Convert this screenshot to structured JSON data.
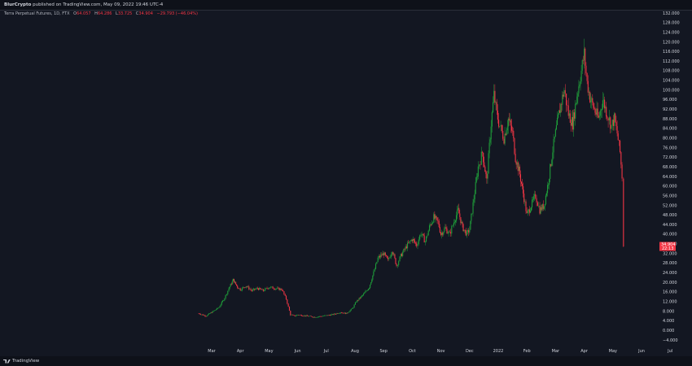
{
  "header": {
    "publisher": "BlurCrypto",
    "published_text": "published on TradingView.com, May 09, 2022 19:46 UTC-4"
  },
  "legend": {
    "symbol": "Terra Perpetual Futures, 1D, FTX",
    "open_label": "O",
    "open_value": "64.057",
    "high_label": "H",
    "high_value": "64.286",
    "low_label": "L",
    "low_value": "33.725",
    "close_label": "C",
    "close_value": "34.904",
    "change_text": "−29.793 (−46.04%)"
  },
  "price_badges": {
    "last_price": "34.904",
    "countdown": "22:13",
    "color": "#f23645"
  },
  "footer": {
    "brand": "TradingView"
  },
  "colors": {
    "up": "#22ab94",
    "up_bright": "#1f9d3a",
    "down": "#f23645",
    "background": "#131722",
    "axis_text": "#d1d4dc"
  },
  "chart_data": {
    "type": "candlestick",
    "y_axis_labels": [
      "−4.000",
      "0.000",
      "4.000",
      "8.000",
      "12.000",
      "16.000",
      "20.000",
      "24.000",
      "28.000",
      "32.000",
      "36.000",
      "40.000",
      "44.000",
      "48.000",
      "52.000",
      "56.000",
      "60.000",
      "64.000",
      "68.000",
      "72.000",
      "76.000",
      "80.000",
      "84.000",
      "88.000",
      "92.000",
      "96.000",
      "100.000",
      "104.000",
      "108.000",
      "112.000",
      "116.000",
      "120.000",
      "124.000",
      "128.000",
      "132.000"
    ],
    "ylim": [
      -4,
      132
    ],
    "y_axis_position": "right",
    "x_axis_labels": [
      "Mar",
      "Apr",
      "May",
      "Jun",
      "Jul",
      "Aug",
      "Sep",
      "Oct",
      "Nov",
      "Dec",
      "2022",
      "Feb",
      "Mar",
      "Apr",
      "May",
      "Jun",
      "Jul"
    ],
    "x_axis_months_index": [
      0,
      1,
      2,
      3,
      4,
      5,
      6,
      7,
      8,
      9,
      10,
      11,
      12,
      13,
      14,
      15,
      16
    ],
    "grid": false,
    "legend_placement": "top-left",
    "price_path": [
      {
        "m": -0.45,
        "v": 7.0
      },
      {
        "m": -0.2,
        "v": 6.0
      },
      {
        "m": 0.0,
        "v": 7.5
      },
      {
        "m": 0.25,
        "v": 9.5
      },
      {
        "m": 0.45,
        "v": 13.5
      },
      {
        "m": 0.6,
        "v": 17.5
      },
      {
        "m": 0.75,
        "v": 21.0
      },
      {
        "m": 0.9,
        "v": 18.0
      },
      {
        "m": 1.0,
        "v": 17.0
      },
      {
        "m": 1.2,
        "v": 18.5
      },
      {
        "m": 1.4,
        "v": 16.5
      },
      {
        "m": 1.6,
        "v": 17.5
      },
      {
        "m": 1.8,
        "v": 16.5
      },
      {
        "m": 2.0,
        "v": 18.0
      },
      {
        "m": 2.2,
        "v": 17.5
      },
      {
        "m": 2.45,
        "v": 17.0
      },
      {
        "m": 2.6,
        "v": 13.0
      },
      {
        "m": 2.75,
        "v": 6.5
      },
      {
        "m": 2.9,
        "v": 6.0
      },
      {
        "m": 3.0,
        "v": 6.5
      },
      {
        "m": 3.3,
        "v": 6.0
      },
      {
        "m": 3.6,
        "v": 5.5
      },
      {
        "m": 3.9,
        "v": 6.0
      },
      {
        "m": 4.2,
        "v": 6.5
      },
      {
        "m": 4.5,
        "v": 7.5
      },
      {
        "m": 4.7,
        "v": 7.0
      },
      {
        "m": 4.9,
        "v": 9.0
      },
      {
        "m": 5.05,
        "v": 12.0
      },
      {
        "m": 5.3,
        "v": 15.0
      },
      {
        "m": 5.5,
        "v": 18.0
      },
      {
        "m": 5.65,
        "v": 24.0
      },
      {
        "m": 5.8,
        "v": 30.0
      },
      {
        "m": 6.0,
        "v": 32.0
      },
      {
        "m": 6.15,
        "v": 29.0
      },
      {
        "m": 6.3,
        "v": 33.5
      },
      {
        "m": 6.45,
        "v": 27.0
      },
      {
        "m": 6.6,
        "v": 31.0
      },
      {
        "m": 6.8,
        "v": 35.0
      },
      {
        "m": 7.0,
        "v": 38.0
      },
      {
        "m": 7.15,
        "v": 35.5
      },
      {
        "m": 7.3,
        "v": 40.5
      },
      {
        "m": 7.45,
        "v": 37.0
      },
      {
        "m": 7.6,
        "v": 43.0
      },
      {
        "m": 7.75,
        "v": 47.0
      },
      {
        "m": 7.9,
        "v": 45.0
      },
      {
        "m": 8.0,
        "v": 40.0
      },
      {
        "m": 8.15,
        "v": 42.5
      },
      {
        "m": 8.3,
        "v": 40.0
      },
      {
        "m": 8.45,
        "v": 45.0
      },
      {
        "m": 8.6,
        "v": 50.0
      },
      {
        "m": 8.75,
        "v": 43.0
      },
      {
        "m": 8.9,
        "v": 40.0
      },
      {
        "m": 9.0,
        "v": 42.0
      },
      {
        "m": 9.15,
        "v": 55.0
      },
      {
        "m": 9.3,
        "v": 68.0
      },
      {
        "m": 9.45,
        "v": 74.0
      },
      {
        "m": 9.6,
        "v": 62.0
      },
      {
        "m": 9.75,
        "v": 86.0
      },
      {
        "m": 9.85,
        "v": 98.0
      },
      {
        "m": 9.95,
        "v": 90.0
      },
      {
        "m": 10.05,
        "v": 85.0
      },
      {
        "m": 10.2,
        "v": 80.0
      },
      {
        "m": 10.35,
        "v": 88.0
      },
      {
        "m": 10.5,
        "v": 82.0
      },
      {
        "m": 10.6,
        "v": 72.0
      },
      {
        "m": 10.75,
        "v": 65.0
      },
      {
        "m": 10.9,
        "v": 55.0
      },
      {
        "m": 11.0,
        "v": 48.0
      },
      {
        "m": 11.15,
        "v": 52.0
      },
      {
        "m": 11.3,
        "v": 56.0
      },
      {
        "m": 11.45,
        "v": 50.0
      },
      {
        "m": 11.6,
        "v": 52.0
      },
      {
        "m": 11.75,
        "v": 62.0
      },
      {
        "m": 11.9,
        "v": 75.0
      },
      {
        "m": 12.0,
        "v": 82.0
      },
      {
        "m": 12.15,
        "v": 92.0
      },
      {
        "m": 12.3,
        "v": 100.0
      },
      {
        "m": 12.45,
        "v": 90.0
      },
      {
        "m": 12.6,
        "v": 86.0
      },
      {
        "m": 12.75,
        "v": 98.0
      },
      {
        "m": 12.9,
        "v": 108.0
      },
      {
        "m": 13.0,
        "v": 115.0
      },
      {
        "m": 13.1,
        "v": 103.0
      },
      {
        "m": 13.2,
        "v": 97.0
      },
      {
        "m": 13.35,
        "v": 92.0
      },
      {
        "m": 13.5,
        "v": 88.0
      },
      {
        "m": 13.65,
        "v": 96.0
      },
      {
        "m": 13.8,
        "v": 90.0
      },
      {
        "m": 13.95,
        "v": 85.0
      },
      {
        "m": 14.05,
        "v": 88.0
      },
      {
        "m": 14.15,
        "v": 82.0
      },
      {
        "m": 14.25,
        "v": 74.0
      },
      {
        "m": 14.32,
        "v": 64.0
      },
      {
        "m": 14.37,
        "v": 34.9
      }
    ]
  }
}
